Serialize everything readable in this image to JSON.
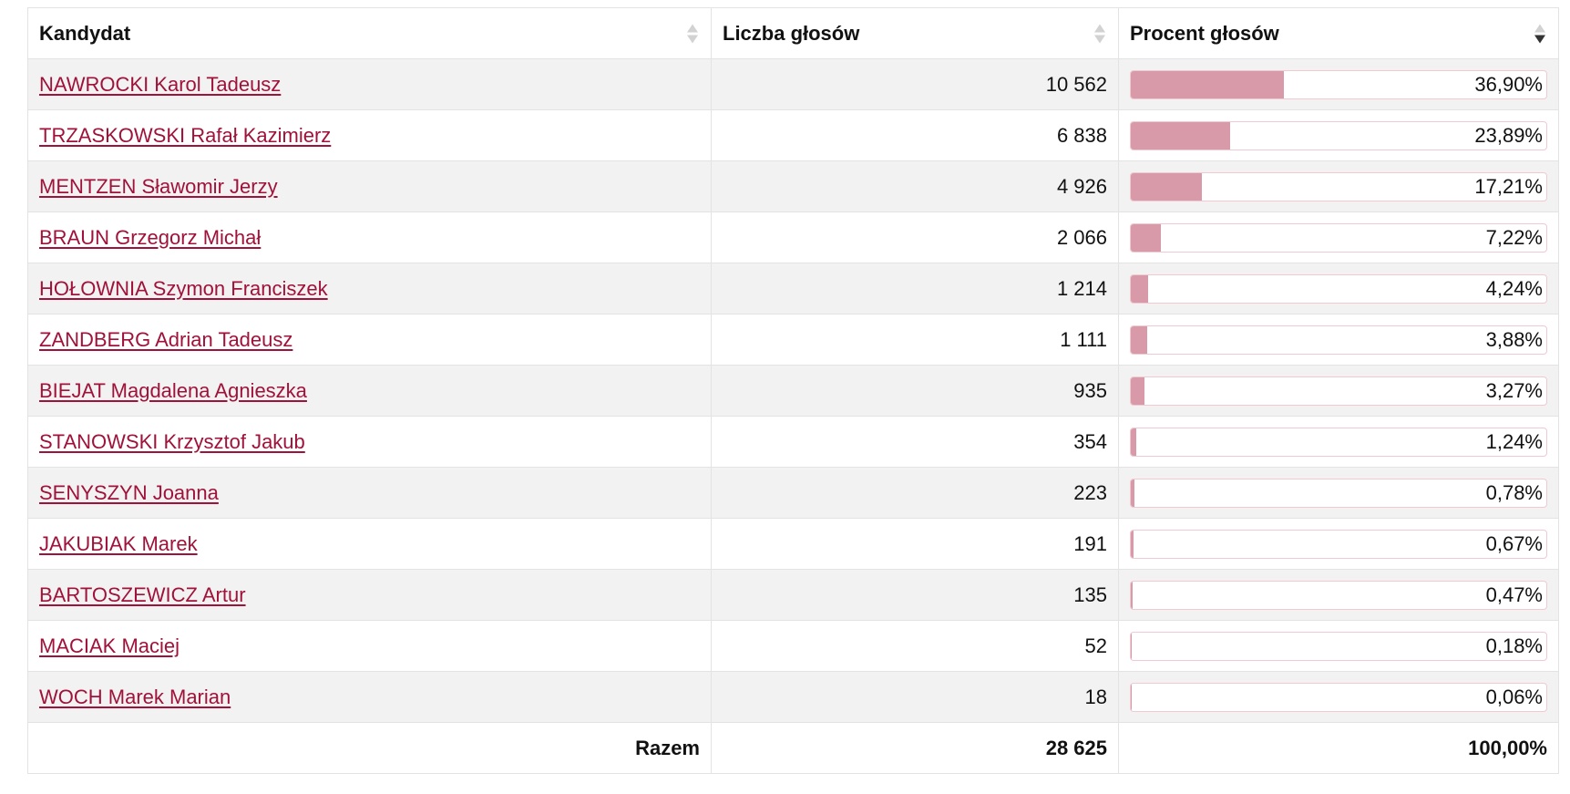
{
  "table": {
    "headers": {
      "candidate": "Kandydat",
      "votes": "Liczba głosów",
      "percent": "Procent głosów"
    },
    "sorted_column": "percent",
    "sort_direction": "descending",
    "bar_color": "#d899a8",
    "link_color": "#a0123a",
    "rows": [
      {
        "name": "NAWROCKI Karol Tadeusz",
        "votes": "10 562",
        "percent": "36,90%",
        "share": 36.9
      },
      {
        "name": "TRZASKOWSKI Rafał Kazimierz",
        "votes": "6 838",
        "percent": "23,89%",
        "share": 23.89
      },
      {
        "name": "MENTZEN Sławomir Jerzy",
        "votes": "4 926",
        "percent": "17,21%",
        "share": 17.21
      },
      {
        "name": "BRAUN Grzegorz Michał",
        "votes": "2 066",
        "percent": "7,22%",
        "share": 7.22
      },
      {
        "name": "HOŁOWNIA Szymon Franciszek",
        "votes": "1 214",
        "percent": "4,24%",
        "share": 4.24
      },
      {
        "name": "ZANDBERG Adrian Tadeusz",
        "votes": "1 111",
        "percent": "3,88%",
        "share": 3.88
      },
      {
        "name": "BIEJAT Magdalena Agnieszka",
        "votes": "935",
        "percent": "3,27%",
        "share": 3.27
      },
      {
        "name": "STANOWSKI Krzysztof Jakub",
        "votes": "354",
        "percent": "1,24%",
        "share": 1.24
      },
      {
        "name": "SENYSZYN Joanna",
        "votes": "223",
        "percent": "0,78%",
        "share": 0.78
      },
      {
        "name": "JAKUBIAK Marek",
        "votes": "191",
        "percent": "0,67%",
        "share": 0.67
      },
      {
        "name": "BARTOSZEWICZ Artur",
        "votes": "135",
        "percent": "0,47%",
        "share": 0.47
      },
      {
        "name": "MACIAK Maciej",
        "votes": "52",
        "percent": "0,18%",
        "share": 0.18
      },
      {
        "name": "WOCH Marek Marian",
        "votes": "18",
        "percent": "0,06%",
        "share": 0.06
      }
    ],
    "footer": {
      "label": "Razem",
      "votes": "28 625",
      "percent": "100,00%"
    }
  }
}
